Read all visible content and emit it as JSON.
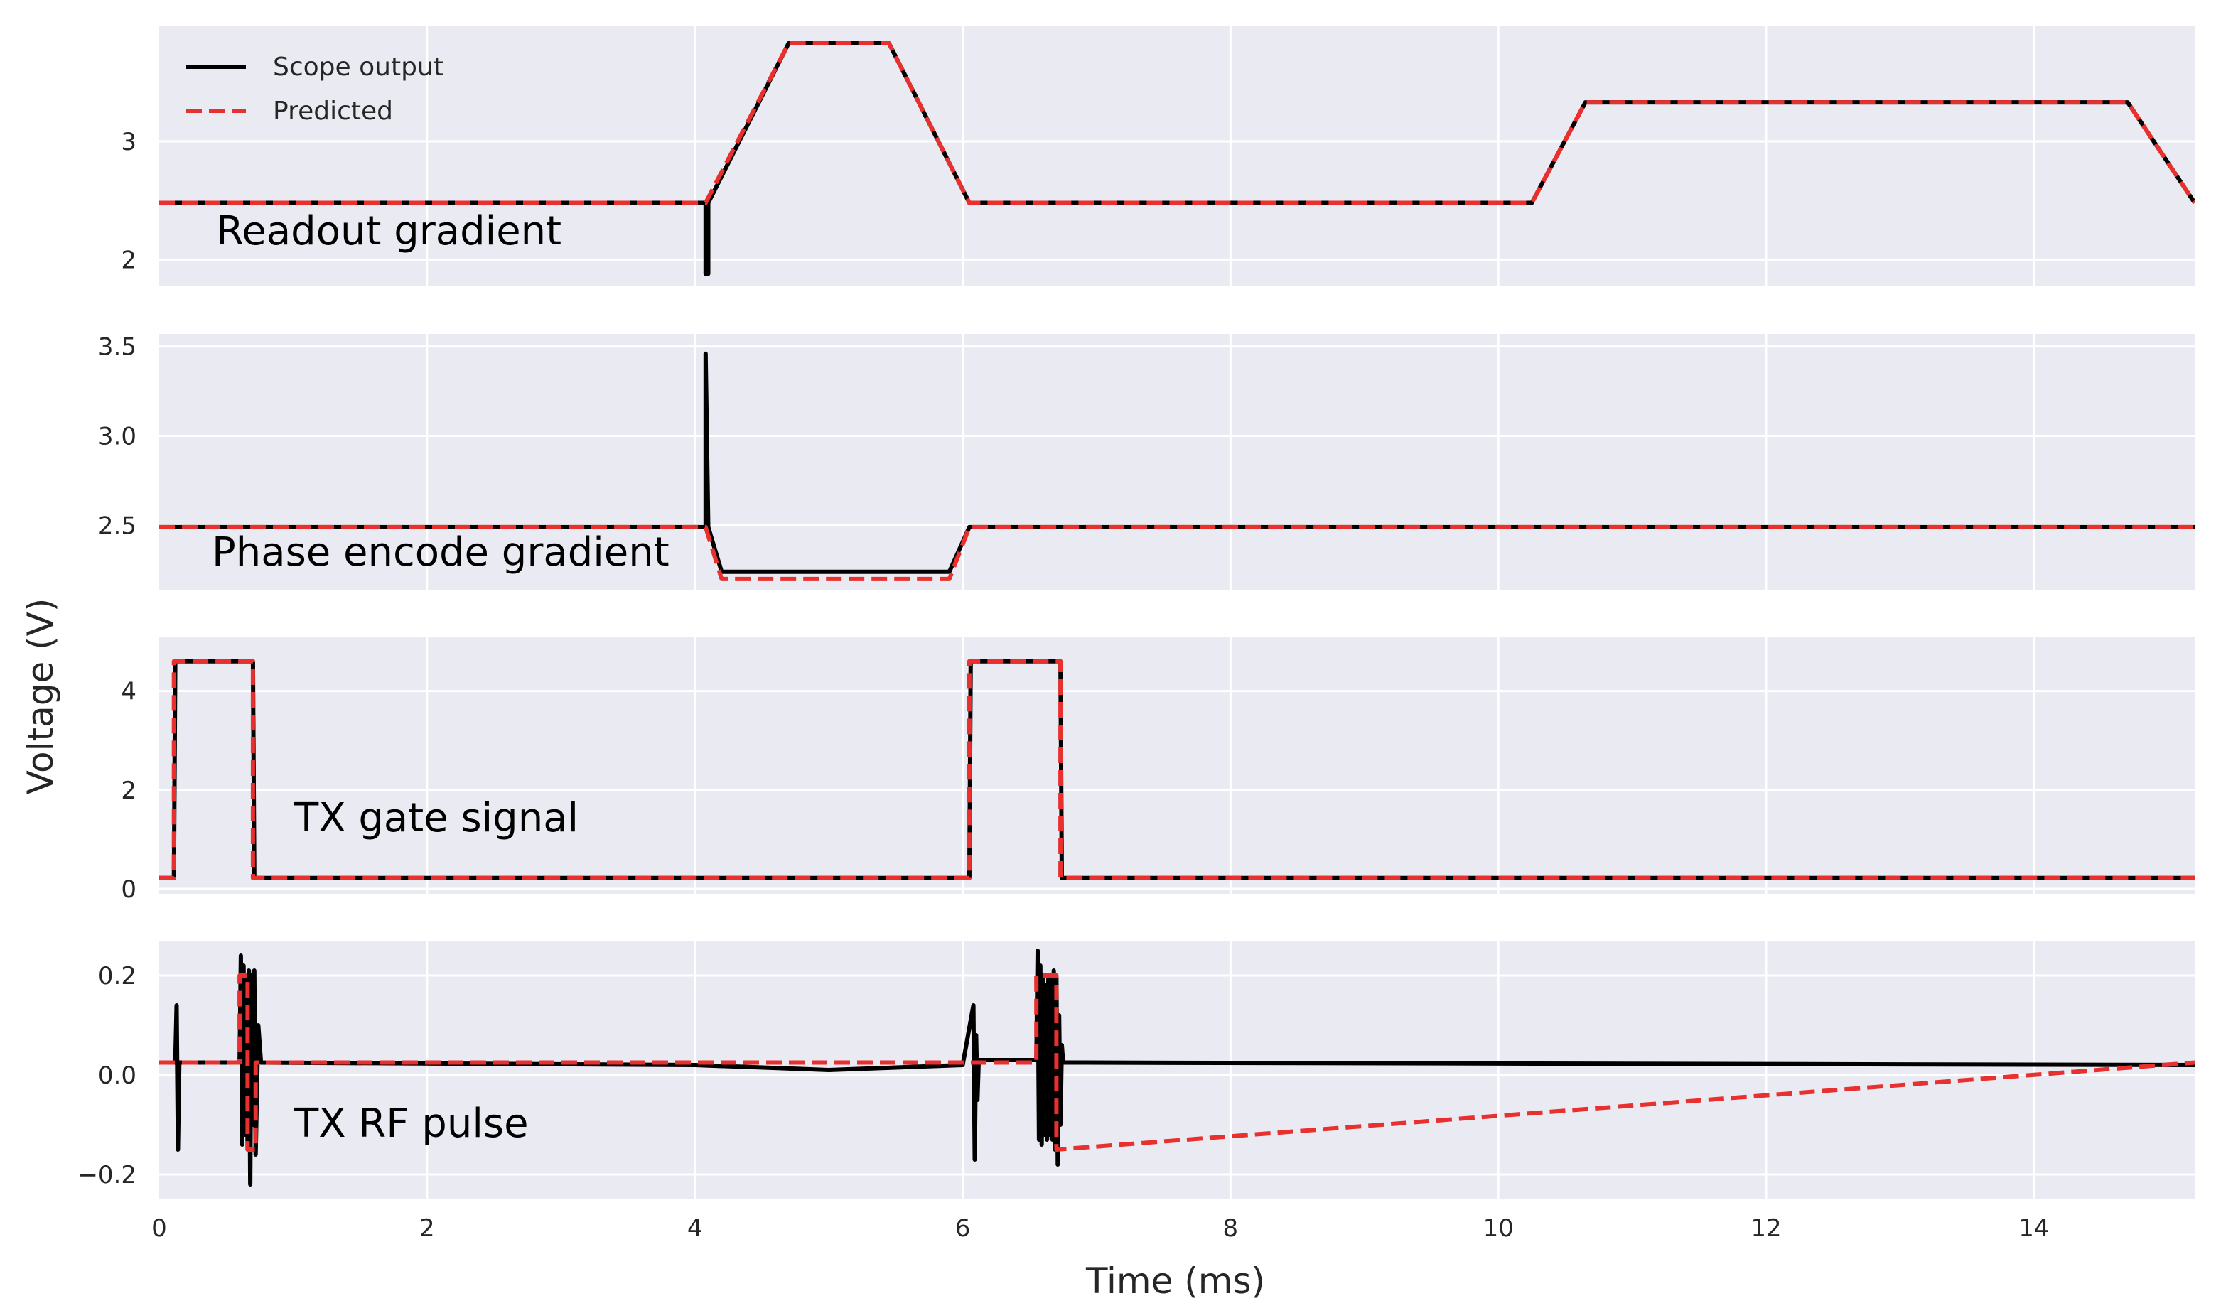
{
  "chart_data": {
    "type": "line",
    "xlabel": "Time (ms)",
    "ylabel": "Voltage (V)",
    "xlim": [
      0,
      15.2
    ],
    "x_ticks": [
      "0",
      "2",
      "4",
      "6",
      "8",
      "10",
      "12",
      "14"
    ],
    "x_tick_values": [
      0,
      2,
      4,
      6,
      8,
      10,
      12,
      14
    ],
    "grid": true,
    "legend": {
      "location": "upper-left",
      "panel": 0,
      "entries": [
        {
          "label": "Scope output",
          "color": "#000000",
          "style": "solid"
        },
        {
          "label": "Predicted",
          "color": "#e8302e",
          "style": "dashed"
        }
      ]
    },
    "colors": {
      "background": "#eaeaf2",
      "grid": "#ffffff",
      "scope": "#000000",
      "predicted": "#e8302e"
    },
    "panels": [
      {
        "label": "Readout gradient",
        "ylim": [
          1.78,
          3.98
        ],
        "y_tick_values": [
          2,
          3
        ],
        "y_ticks": [
          "2",
          "3"
        ],
        "series": [
          {
            "name": "Scope output",
            "x": [
              0,
              4.08,
              4.08,
              4.1,
              4.1,
              4.7,
              5.45,
              6.05,
              10.25,
              10.65,
              14.7,
              15.2
            ],
            "y": [
              2.48,
              2.48,
              1.88,
              1.88,
              2.48,
              3.83,
              3.83,
              2.48,
              2.48,
              3.33,
              3.33,
              2.48
            ]
          },
          {
            "name": "Predicted",
            "x": [
              0,
              4.08,
              4.7,
              5.45,
              6.05,
              10.25,
              10.65,
              14.7,
              15.2
            ],
            "y": [
              2.48,
              2.48,
              3.83,
              3.83,
              2.48,
              2.48,
              3.33,
              3.33,
              2.48
            ]
          }
        ]
      },
      {
        "label": "Phase encode gradient",
        "ylim": [
          2.14,
          3.57
        ],
        "y_tick_values": [
          2.5,
          3.0,
          3.5
        ],
        "y_ticks": [
          "2.5",
          "3.0",
          "3.5"
        ],
        "series": [
          {
            "name": "Scope output",
            "x": [
              0,
              4.08,
              4.08,
              4.1,
              4.2,
              5.9,
              6.05,
              15.2
            ],
            "y": [
              2.49,
              2.49,
              3.46,
              2.49,
              2.24,
              2.24,
              2.49,
              2.49
            ]
          },
          {
            "name": "Predicted",
            "x": [
              0,
              4.08,
              4.2,
              5.9,
              6.05,
              15.2
            ],
            "y": [
              2.49,
              2.49,
              2.2,
              2.2,
              2.49,
              2.49
            ]
          }
        ]
      },
      {
        "label": "TX gate signal",
        "ylim": [
          -0.1,
          5.1
        ],
        "y_tick_values": [
          0,
          2,
          4
        ],
        "y_ticks": [
          "0",
          "2",
          "4"
        ],
        "series": [
          {
            "name": "Scope output",
            "x": [
              0,
              0.11,
              0.12,
              0.7,
              0.71,
              6.05,
              6.06,
              6.73,
              6.74,
              15.2
            ],
            "y": [
              0.22,
              0.22,
              4.6,
              4.6,
              0.22,
              0.22,
              4.6,
              4.6,
              0.22,
              0.22
            ]
          },
          {
            "name": "Predicted",
            "x": [
              0,
              0.11,
              0.11,
              0.7,
              0.7,
              6.05,
              6.05,
              6.73,
              6.73,
              15.2
            ],
            "y": [
              0.22,
              0.22,
              4.6,
              4.6,
              0.22,
              0.22,
              4.6,
              4.6,
              0.22,
              0.22
            ]
          }
        ]
      },
      {
        "label": "TX RF pulse",
        "ylim": [
          -0.25,
          0.27
        ],
        "y_tick_values": [
          -0.2,
          0.0,
          0.2
        ],
        "y_ticks": [
          "−0.2",
          "0.0",
          "0.2"
        ],
        "series": [
          {
            "name": "Scope output",
            "x": [
              0,
              0.12,
              0.13,
              0.14,
              0.15,
              0.6,
              0.61,
              0.62,
              0.63,
              0.64,
              0.65,
              0.66,
              0.67,
              0.68,
              0.69,
              0.7,
              0.71,
              0.72,
              0.74,
              0.76,
              4.0,
              5.0,
              6.0,
              6.08,
              6.09,
              6.1,
              6.11,
              6.12,
              6.55,
              6.56,
              6.57,
              6.58,
              6.59,
              6.6,
              6.61,
              6.62,
              6.63,
              6.64,
              6.65,
              6.66,
              6.67,
              6.68,
              6.69,
              6.7,
              6.71,
              6.72,
              6.73,
              6.74,
              6.75,
              6.8,
              15.2
            ],
            "y": [
              0.025,
              0.025,
              0.14,
              -0.15,
              0.025,
              0.025,
              0.24,
              -0.14,
              0.22,
              -0.12,
              0.2,
              -0.15,
              0.21,
              -0.22,
              0.2,
              -0.1,
              0.21,
              -0.16,
              0.1,
              0.025,
              0.02,
              0.01,
              0.02,
              0.14,
              -0.17,
              0.08,
              -0.05,
              0.03,
              0.03,
              0.25,
              -0.13,
              0.22,
              -0.14,
              0.2,
              -0.12,
              0.18,
              -0.13,
              0.2,
              -0.12,
              0.19,
              -0.13,
              0.21,
              -0.15,
              0.2,
              -0.18,
              0.12,
              -0.1,
              0.06,
              0.025,
              0.025,
              0.02
            ]
          },
          {
            "name": "Predicted",
            "x": [
              0,
              0.6,
              0.6,
              0.66,
              0.66,
              0.72,
              0.72,
              6.55,
              6.55,
              6.7,
              6.7,
              15.2
            ],
            "y": [
              0.025,
              0.025,
              0.2,
              0.2,
              -0.15,
              -0.15,
              0.025,
              0.025,
              0.2,
              0.2,
              -0.15,
              0.025
            ]
          }
        ]
      }
    ]
  }
}
